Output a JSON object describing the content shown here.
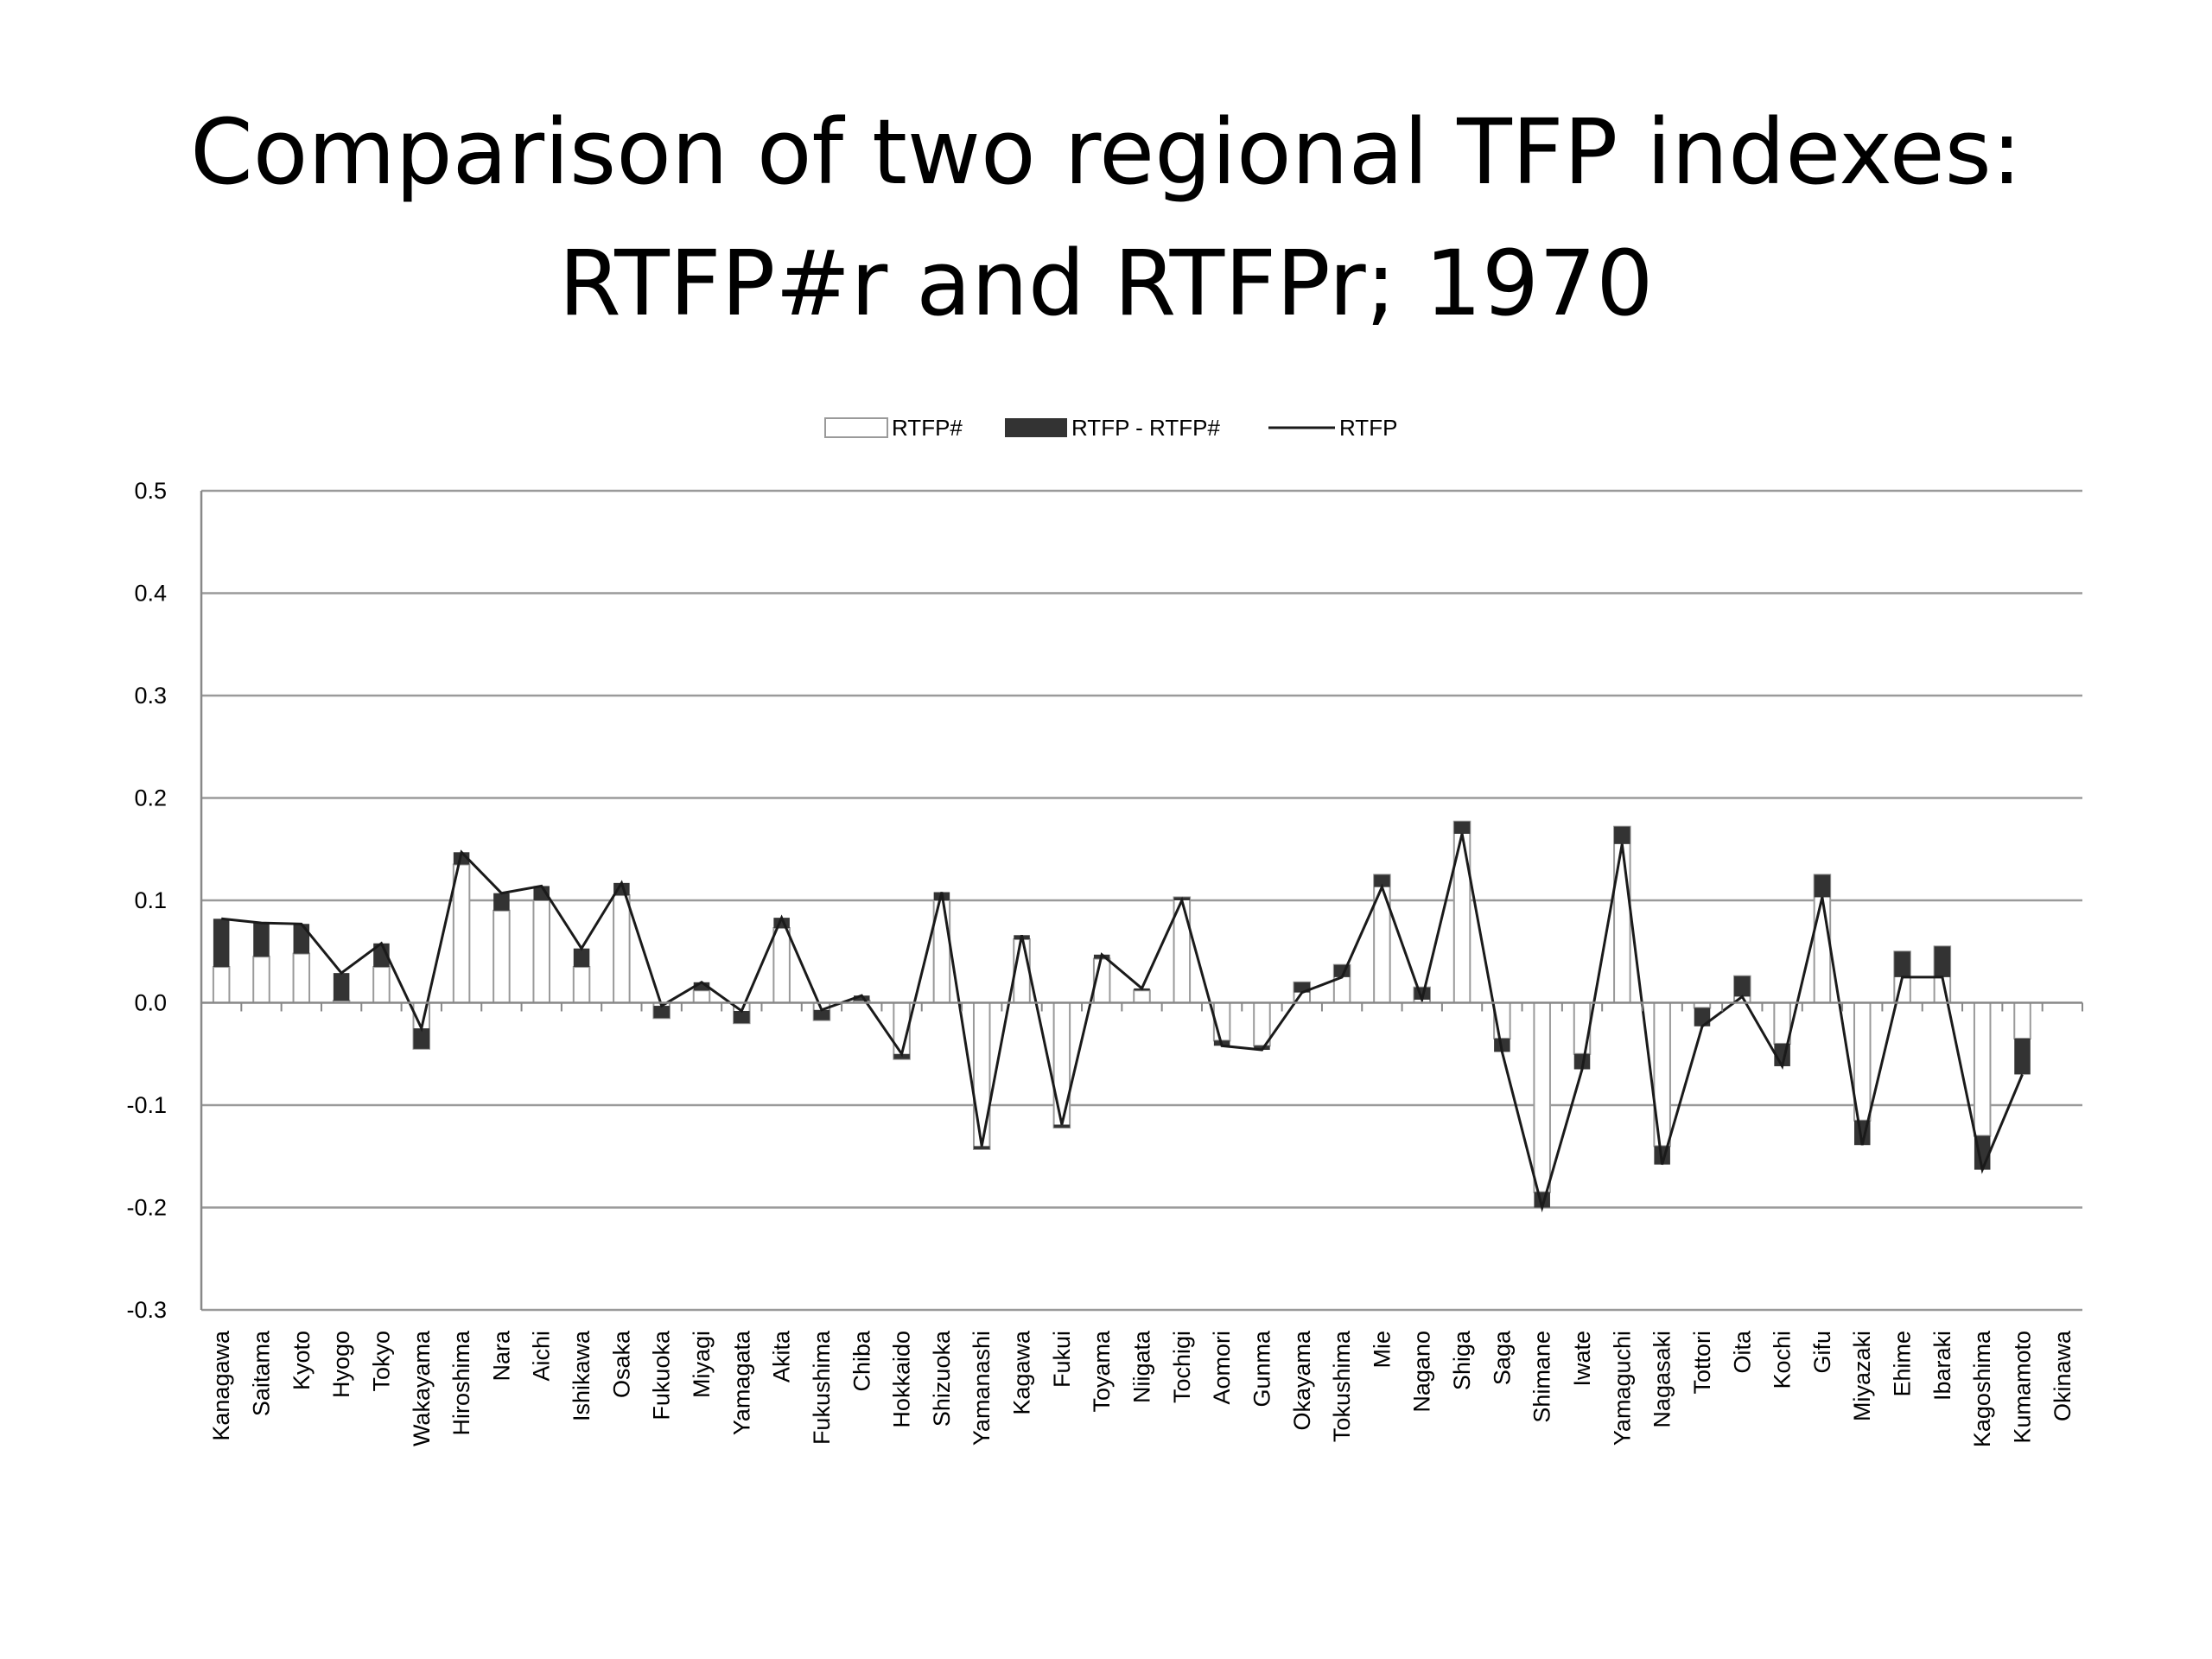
{
  "title": {
    "line1": "Comparison of two regional TFP indexes:",
    "line2": "RTFP#r and RTFPr; 1970"
  },
  "chart_data": {
    "type": "bar",
    "stacked": true,
    "legend_position": "top-center",
    "grid": true,
    "ylim": [
      -0.3,
      0.5
    ],
    "yticks": [
      0.5,
      0.4,
      0.3,
      0.2,
      0.1,
      0.0,
      -0.1,
      -0.2,
      -0.3
    ],
    "ytick_labels": [
      "0.5",
      "0.4",
      "0.3",
      "0.2",
      "0.1",
      "0.0",
      "-0.1",
      "-0.2",
      "-0.3"
    ],
    "categories": [
      "Kanagawa",
      "Saitama",
      "Kyoto",
      "Hyogo",
      "Tokyo",
      "Wakayama",
      "Hiroshima",
      "Nara",
      "Aichi",
      "Ishikawa",
      "Osaka",
      "Fukuoka",
      "Miyagi",
      "Yamagata",
      "Akita",
      "Fukushima",
      "Chiba",
      "Hokkaido",
      "Shizuoka",
      "Yamanashi",
      "Kagawa",
      "Fukui",
      "Toyama",
      "Niigata",
      "Tochigi",
      "Aomori",
      "Gunma",
      "Okayama",
      "Tokushima",
      "Mie",
      "Nagano",
      "Shiga",
      "Saga",
      "Shimane",
      "Iwate",
      "Yamaguchi",
      "Nagasaki",
      "Tottori",
      "Oita",
      "Kochi",
      "Gifu",
      "Miyazaki",
      "Ehime",
      "Ibaraki",
      "Kagoshima",
      "Kumamoto",
      "Okinawa"
    ],
    "series": [
      {
        "name": "RTFP#",
        "kind": "bar",
        "color": "#ffffff",
        "stroke": "#9a9a9a",
        "values": [
          0.035,
          0.045,
          0.048,
          0.002,
          0.035,
          -0.045,
          0.135,
          0.09,
          0.1,
          0.035,
          0.105,
          -0.015,
          0.012,
          -0.02,
          0.073,
          -0.017,
          0.002,
          -0.055,
          0.1,
          -0.143,
          0.062,
          -0.122,
          0.043,
          0.012,
          0.103,
          -0.037,
          -0.042,
          0.02,
          0.037,
          0.125,
          0.015,
          0.177,
          -0.035,
          -0.185,
          -0.05,
          0.172,
          -0.14,
          -0.005,
          0.026,
          -0.04,
          0.125,
          -0.115,
          0.05,
          0.055,
          -0.13,
          -0.035,
          0.0
        ]
      },
      {
        "name": "RTFP - RTFP#",
        "kind": "bar",
        "color": "#333333",
        "values": [
          0.047,
          0.033,
          0.029,
          0.027,
          0.023,
          0.02,
          0.012,
          0.017,
          0.014,
          0.018,
          0.012,
          0.012,
          0.008,
          0.012,
          0.01,
          0.01,
          0.005,
          0.005,
          0.008,
          0.003,
          0.004,
          0.003,
          0.004,
          0.002,
          -0.003,
          -0.005,
          -0.004,
          -0.01,
          -0.012,
          -0.012,
          -0.012,
          -0.012,
          -0.013,
          -0.015,
          -0.015,
          -0.017,
          -0.018,
          -0.018,
          -0.02,
          -0.022,
          -0.022,
          -0.024,
          -0.025,
          -0.03,
          -0.033,
          -0.035,
          0.0
        ]
      },
      {
        "name": "RTFP",
        "kind": "line",
        "color": "#1a1a1a",
        "values": [
          0.082,
          0.078,
          0.077,
          0.029,
          0.058,
          -0.025,
          0.147,
          0.107,
          0.114,
          0.053,
          0.117,
          -0.003,
          0.02,
          -0.008,
          0.083,
          -0.007,
          0.007,
          -0.05,
          0.108,
          -0.14,
          0.066,
          -0.119,
          0.047,
          0.014,
          0.1,
          -0.042,
          -0.046,
          0.01,
          0.025,
          0.113,
          0.003,
          0.165,
          -0.048,
          -0.2,
          -0.065,
          0.155,
          -0.158,
          -0.023,
          0.006,
          -0.062,
          0.103,
          -0.139,
          0.025,
          0.025,
          -0.163,
          -0.07,
          null
        ]
      }
    ]
  }
}
